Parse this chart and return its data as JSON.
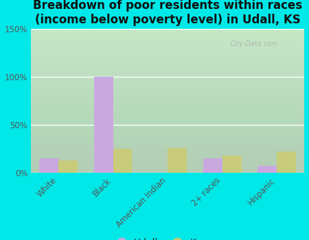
{
  "title": "Breakdown of poor residents within races\n(income below poverty level) in Udall, KS",
  "categories": [
    "White",
    "Black",
    "American Indian",
    "2+ races",
    "Hispanic"
  ],
  "udall_values": [
    15,
    100,
    0,
    15,
    7
  ],
  "kansas_values": [
    13,
    25,
    26,
    18,
    22
  ],
  "udall_color": "#c9a8e0",
  "kansas_color": "#c8cc7a",
  "background_outer": "#00e8e8",
  "ylim": [
    0,
    150
  ],
  "yticks": [
    0,
    50,
    100,
    150
  ],
  "ytick_labels": [
    "0%",
    "50%",
    "100%",
    "150%"
  ],
  "bar_width": 0.35,
  "title_fontsize": 12,
  "tick_fontsize": 8.5,
  "legend_fontsize": 10
}
